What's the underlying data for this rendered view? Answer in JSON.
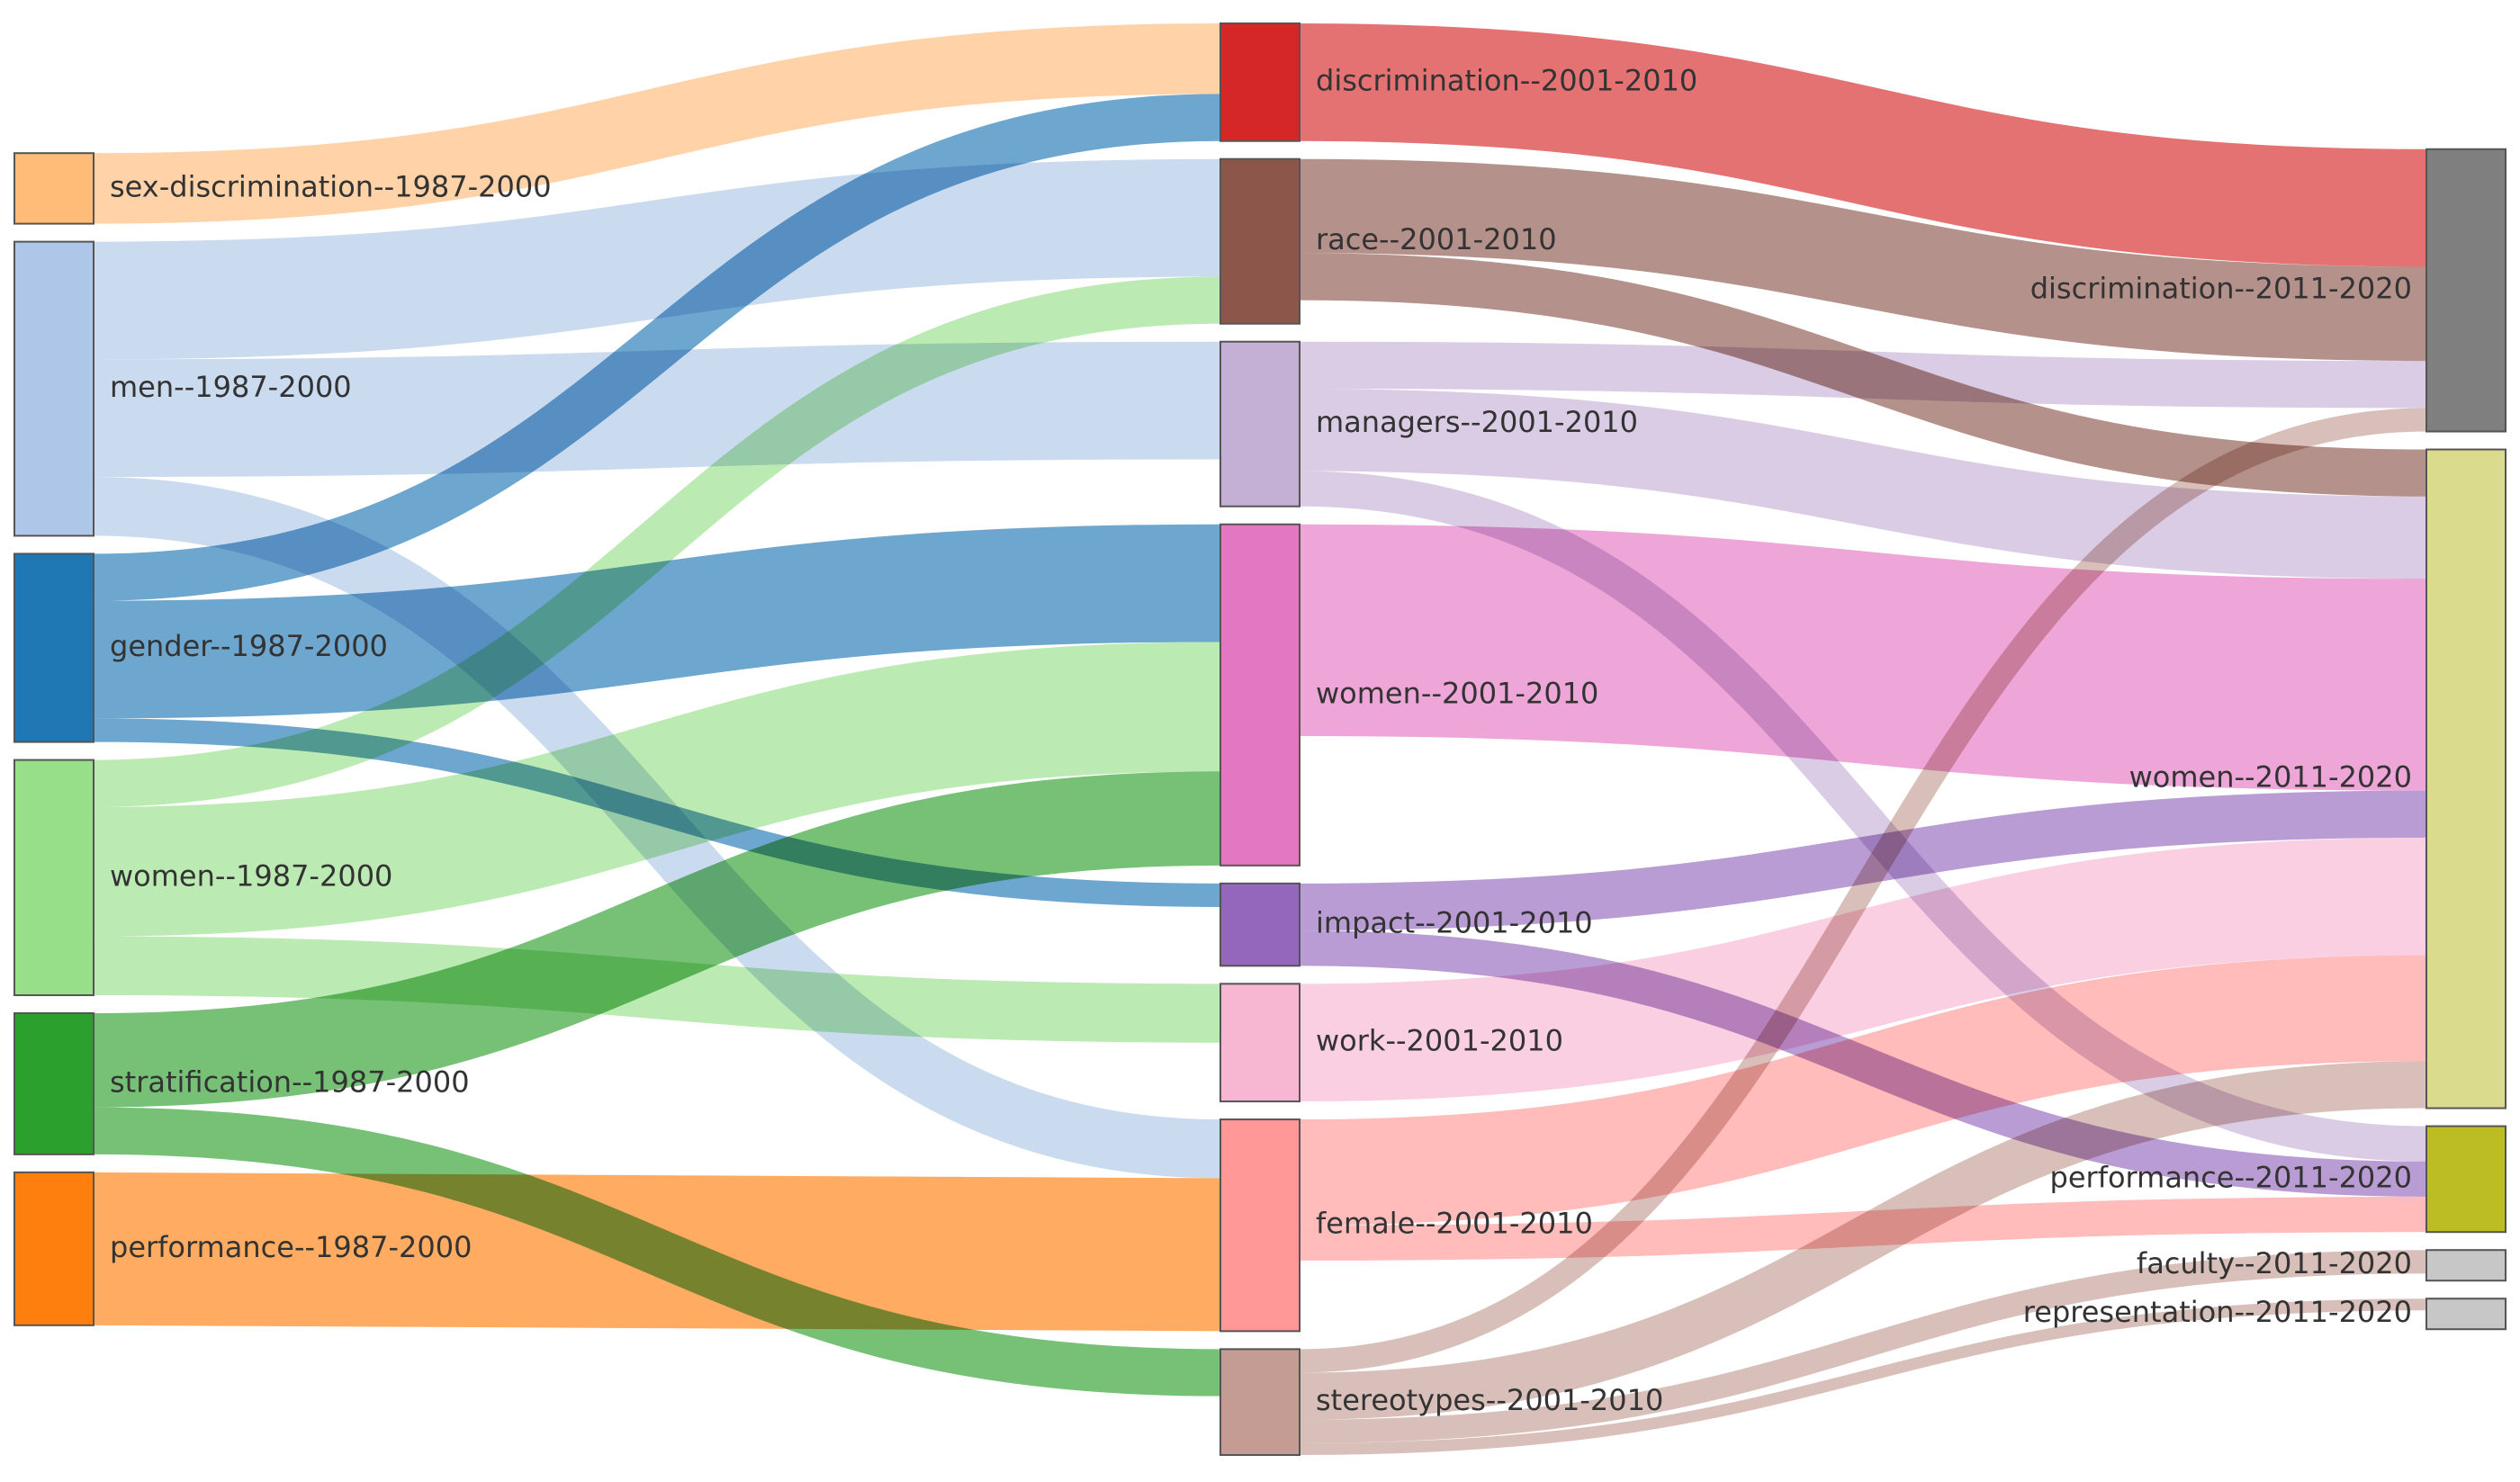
{
  "chart_data": {
    "type": "sankey",
    "title": "",
    "columns": [
      "1987-2000",
      "2001-2010",
      "2011-2020"
    ],
    "nodes": [
      {
        "id": "sex-discrimination--1987-2000",
        "label": "sex-discrimination--1987-2000",
        "column": 0,
        "color": "#ffbb78"
      },
      {
        "id": "men--1987-2000",
        "label": "men--1987-2000",
        "column": 0,
        "color": "#aec7e8"
      },
      {
        "id": "gender--1987-2000",
        "label": "gender--1987-2000",
        "column": 0,
        "color": "#1f77b4"
      },
      {
        "id": "women--1987-2000",
        "label": "women--1987-2000",
        "column": 0,
        "color": "#98df8a"
      },
      {
        "id": "stratification--1987-2000",
        "label": "stratification--1987-2000",
        "column": 0,
        "color": "#2ca02c"
      },
      {
        "id": "performance--1987-2000",
        "label": "performance--1987-2000",
        "column": 0,
        "color": "#ff7f0e"
      },
      {
        "id": "discrimination--2001-2010",
        "label": "discrimination--2001-2010",
        "column": 1,
        "color": "#d62728"
      },
      {
        "id": "race--2001-2010",
        "label": "race--2001-2010",
        "column": 1,
        "color": "#8c564b"
      },
      {
        "id": "managers--2001-2010",
        "label": "managers--2001-2010",
        "column": 1,
        "color": "#c5b0d5"
      },
      {
        "id": "women--2001-2010",
        "label": "women--2001-2010",
        "column": 1,
        "color": "#e377c2"
      },
      {
        "id": "impact--2001-2010",
        "label": "impact--2001-2010",
        "column": 1,
        "color": "#9467bd"
      },
      {
        "id": "work--2001-2010",
        "label": "work--2001-2010",
        "column": 1,
        "color": "#f7b6d2"
      },
      {
        "id": "female--2001-2010",
        "label": "female--2001-2010",
        "column": 1,
        "color": "#ff9896"
      },
      {
        "id": "stereotypes--2001-2010",
        "label": "stereotypes--2001-2010",
        "column": 1,
        "color": "#c49c94"
      },
      {
        "id": "discrimination--2011-2020",
        "label": "discrimination--2011-2020",
        "column": 2,
        "color": "#7f7f7f"
      },
      {
        "id": "women--2011-2020",
        "label": "women--2011-2020",
        "column": 2,
        "color": "#dbdb8d"
      },
      {
        "id": "performance--2011-2020",
        "label": "performance--2011-2020",
        "column": 2,
        "color": "#bcbd22"
      },
      {
        "id": "faculty--2011-2020",
        "label": "faculty--2011-2020",
        "column": 2,
        "color": "#c7c7c7"
      },
      {
        "id": "representation--2011-2020",
        "label": "representation--2011-2020",
        "column": 2,
        "color": "#c7c7c7"
      }
    ],
    "links": [
      {
        "source": "sex-discrimination--1987-2000",
        "target": "discrimination--2001-2010",
        "value": 3
      },
      {
        "source": "men--1987-2000",
        "target": "race--2001-2010",
        "value": 5
      },
      {
        "source": "men--1987-2000",
        "target": "managers--2001-2010",
        "value": 5
      },
      {
        "source": "men--1987-2000",
        "target": "female--2001-2010",
        "value": 2.5
      },
      {
        "source": "gender--1987-2000",
        "target": "discrimination--2001-2010",
        "value": 2
      },
      {
        "source": "gender--1987-2000",
        "target": "women--2001-2010",
        "value": 5
      },
      {
        "source": "gender--1987-2000",
        "target": "impact--2001-2010",
        "value": 1
      },
      {
        "source": "women--1987-2000",
        "target": "race--2001-2010",
        "value": 2
      },
      {
        "source": "women--1987-2000",
        "target": "women--2001-2010",
        "value": 5.5
      },
      {
        "source": "women--1987-2000",
        "target": "work--2001-2010",
        "value": 2.5
      },
      {
        "source": "stratification--1987-2000",
        "target": "women--2001-2010",
        "value": 4
      },
      {
        "source": "stratification--1987-2000",
        "target": "stereotypes--2001-2010",
        "value": 2
      },
      {
        "source": "performance--1987-2000",
        "target": "female--2001-2010",
        "value": 6.5
      },
      {
        "source": "discrimination--2001-2010",
        "target": "discrimination--2011-2020",
        "value": 5
      },
      {
        "source": "race--2001-2010",
        "target": "discrimination--2011-2020",
        "value": 4
      },
      {
        "source": "race--2001-2010",
        "target": "women--2011-2020",
        "value": 2
      },
      {
        "source": "managers--2001-2010",
        "target": "discrimination--2011-2020",
        "value": 2
      },
      {
        "source": "managers--2001-2010",
        "target": "women--2011-2020",
        "value": 3.5
      },
      {
        "source": "managers--2001-2010",
        "target": "performance--2011-2020",
        "value": 1.5
      },
      {
        "source": "women--2001-2010",
        "target": "women--2011-2020",
        "value": 9
      },
      {
        "source": "impact--2001-2010",
        "target": "women--2011-2020",
        "value": 2
      },
      {
        "source": "impact--2001-2010",
        "target": "performance--2011-2020",
        "value": 1.5
      },
      {
        "source": "work--2001-2010",
        "target": "women--2011-2020",
        "value": 5
      },
      {
        "source": "female--2001-2010",
        "target": "women--2011-2020",
        "value": 4.5
      },
      {
        "source": "female--2001-2010",
        "target": "performance--2011-2020",
        "value": 1.5
      },
      {
        "source": "stereotypes--2001-2010",
        "target": "discrimination--2011-2020",
        "value": 1
      },
      {
        "source": "stereotypes--2001-2010",
        "target": "women--2011-2020",
        "value": 2
      },
      {
        "source": "stereotypes--2001-2010",
        "target": "faculty--2011-2020",
        "value": 1
      },
      {
        "source": "stereotypes--2001-2010",
        "target": "representation--2011-2020",
        "value": 0.5
      }
    ]
  }
}
